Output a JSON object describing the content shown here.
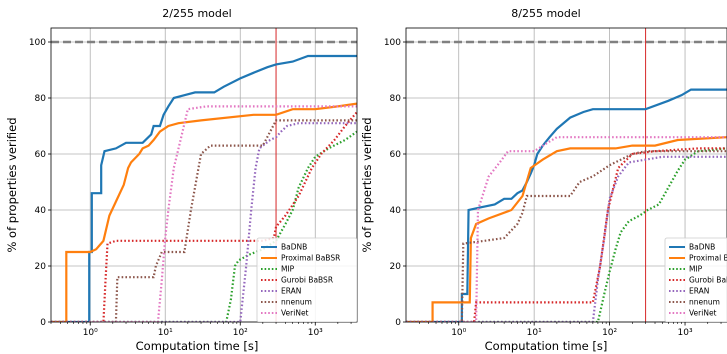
{
  "chart_data": [
    {
      "type": "line",
      "title": "2/255 model",
      "xlabel": "Computation time [s]",
      "ylabel": "% of properties verified",
      "xscale": "log",
      "xlim": [
        0.3,
        3600
      ],
      "ylim": [
        0,
        105
      ],
      "xticks": [
        1,
        10,
        100,
        1000
      ],
      "xticklabels": [
        "10⁰",
        "10¹",
        "10²",
        "10³"
      ],
      "yticks": [
        0,
        20,
        40,
        60,
        80,
        100
      ],
      "reference_hline": 100,
      "reference_vline": 300,
      "grid": true,
      "legend_position": "lower-right",
      "series": [
        {
          "name": "BaDNB",
          "color": "#1f77b4",
          "style": "solid",
          "points": [
            [
              0.3,
              0
            ],
            [
              0.97,
              0
            ],
            [
              0.97,
              25
            ],
            [
              1.05,
              25
            ],
            [
              1.05,
              46
            ],
            [
              1.4,
              46
            ],
            [
              1.4,
              56
            ],
            [
              1.55,
              61
            ],
            [
              2.2,
              62
            ],
            [
              3,
              64
            ],
            [
              5,
              64
            ],
            [
              6.5,
              67
            ],
            [
              7,
              70
            ],
            [
              8.5,
              70
            ],
            [
              9.5,
              74
            ],
            [
              11,
              77
            ],
            [
              13,
              80
            ],
            [
              18,
              81
            ],
            [
              25,
              82
            ],
            [
              45,
              82
            ],
            [
              60,
              84
            ],
            [
              100,
              87
            ],
            [
              150,
              89
            ],
            [
              230,
              91
            ],
            [
              300,
              92
            ],
            [
              500,
              93
            ],
            [
              800,
              95
            ],
            [
              3600,
              95
            ]
          ]
        },
        {
          "name": "Proximal BaBSR",
          "color": "#ff7f0e",
          "style": "solid",
          "points": [
            [
              0.3,
              0
            ],
            [
              0.48,
              0
            ],
            [
              0.48,
              25
            ],
            [
              1,
              25
            ],
            [
              1.2,
              26
            ],
            [
              1.5,
              29
            ],
            [
              1.8,
              38
            ],
            [
              2.2,
              43
            ],
            [
              2.8,
              49
            ],
            [
              3.2,
              55
            ],
            [
              3.5,
              57
            ],
            [
              4.5,
              60
            ],
            [
              5,
              62
            ],
            [
              6,
              63
            ],
            [
              7,
              65
            ],
            [
              8.5,
              68
            ],
            [
              11,
              70
            ],
            [
              15,
              71
            ],
            [
              30,
              72
            ],
            [
              150,
              74
            ],
            [
              300,
              74
            ],
            [
              500,
              76
            ],
            [
              1000,
              76
            ],
            [
              2000,
              77
            ],
            [
              3600,
              78
            ]
          ]
        },
        {
          "name": "MIP",
          "color": "#2ca02c",
          "style": "dotted",
          "points": [
            [
              0.3,
              0
            ],
            [
              65,
              0
            ],
            [
              75,
              8
            ],
            [
              85,
              20
            ],
            [
              95,
              22
            ],
            [
              130,
              24
            ],
            [
              200,
              26
            ],
            [
              300,
              29
            ],
            [
              400,
              35
            ],
            [
              500,
              40
            ],
            [
              600,
              48
            ],
            [
              800,
              55
            ],
            [
              1000,
              59
            ],
            [
              1500,
              62
            ],
            [
              2500,
              65
            ],
            [
              3600,
              68
            ]
          ]
        },
        {
          "name": "Gurobi BaBSR",
          "color": "#d62728",
          "style": "dotted",
          "points": [
            [
              0.3,
              0
            ],
            [
              1.5,
              0
            ],
            [
              1.6,
              15
            ],
            [
              1.7,
              28
            ],
            [
              2.2,
              29
            ],
            [
              130,
              29
            ],
            [
              200,
              29
            ],
            [
              280,
              30
            ],
            [
              300,
              34
            ],
            [
              400,
              38
            ],
            [
              600,
              45
            ],
            [
              900,
              55
            ],
            [
              1200,
              60
            ],
            [
              1800,
              65
            ],
            [
              2500,
              70
            ],
            [
              3600,
              75
            ]
          ]
        },
        {
          "name": "ERAN",
          "color": "#9467bd",
          "style": "dotted",
          "points": [
            [
              0.3,
              0
            ],
            [
              100,
              0
            ],
            [
              120,
              20
            ],
            [
              140,
              40
            ],
            [
              160,
              55
            ],
            [
              180,
              62
            ],
            [
              250,
              65
            ],
            [
              300,
              66
            ],
            [
              350,
              68
            ],
            [
              420,
              70
            ],
            [
              600,
              71
            ],
            [
              3600,
              71
            ]
          ]
        },
        {
          "name": "nnenum",
          "color": "#8c564b",
          "style": "dotted",
          "points": [
            [
              0.3,
              0
            ],
            [
              2.2,
              0
            ],
            [
              2.3,
              16
            ],
            [
              7,
              16
            ],
            [
              7.5,
              20
            ],
            [
              9,
              25
            ],
            [
              18,
              25
            ],
            [
              22,
              40
            ],
            [
              30,
              60
            ],
            [
              40,
              63
            ],
            [
              200,
              63
            ],
            [
              300,
              72
            ],
            [
              3600,
              72
            ]
          ]
        },
        {
          "name": "VeriNet",
          "color": "#e377c2",
          "style": "dotted",
          "points": [
            [
              0.3,
              0
            ],
            [
              8,
              0
            ],
            [
              9,
              15
            ],
            [
              10,
              30
            ],
            [
              11,
              40
            ],
            [
              13,
              55
            ],
            [
              16,
              65
            ],
            [
              20,
              76
            ],
            [
              35,
              77
            ],
            [
              200,
              77
            ],
            [
              3600,
              77
            ]
          ]
        }
      ]
    },
    {
      "type": "line",
      "title": "8/255 model",
      "xlabel": "Computation time [s]",
      "ylabel": "% of properties verified",
      "xscale": "log",
      "xlim": [
        0.2,
        3600
      ],
      "ylim": [
        0,
        105
      ],
      "xticks": [
        1,
        10,
        100,
        1000
      ],
      "xticklabels": [
        "10⁰",
        "10¹",
        "10²",
        "10³"
      ],
      "yticks": [
        0,
        20,
        40,
        60,
        80,
        100
      ],
      "reference_hline": 100,
      "reference_vline": 300,
      "grid": true,
      "legend_position": "lower-right",
      "series": [
        {
          "name": "BaDNB",
          "color": "#1f77b4",
          "style": "solid",
          "points": [
            [
              0.2,
              0
            ],
            [
              1.1,
              0
            ],
            [
              1.1,
              10
            ],
            [
              1.3,
              10
            ],
            [
              1.35,
              40
            ],
            [
              2,
              41
            ],
            [
              3,
              42
            ],
            [
              4,
              44
            ],
            [
              5,
              44
            ],
            [
              6,
              46
            ],
            [
              7,
              47
            ],
            [
              8,
              50
            ],
            [
              9,
              53
            ],
            [
              10,
              56
            ],
            [
              11,
              60
            ],
            [
              13,
              63
            ],
            [
              16,
              66
            ],
            [
              20,
              69
            ],
            [
              30,
              73
            ],
            [
              45,
              75
            ],
            [
              60,
              76
            ],
            [
              300,
              76
            ],
            [
              600,
              79
            ],
            [
              900,
              81
            ],
            [
              1200,
              83
            ],
            [
              3600,
              83
            ]
          ]
        },
        {
          "name": "Proximal BaBSR",
          "color": "#ff7f0e",
          "style": "solid",
          "points": [
            [
              0.2,
              0
            ],
            [
              0.45,
              0
            ],
            [
              0.45,
              7
            ],
            [
              1.4,
              7
            ],
            [
              1.45,
              30
            ],
            [
              1.7,
              35
            ],
            [
              2.5,
              37
            ],
            [
              5,
              40
            ],
            [
              7,
              45
            ],
            [
              9,
              55
            ],
            [
              13,
              58
            ],
            [
              20,
              61
            ],
            [
              30,
              62
            ],
            [
              120,
              62
            ],
            [
              200,
              63
            ],
            [
              400,
              63
            ],
            [
              800,
              65
            ],
            [
              3600,
              66
            ]
          ]
        },
        {
          "name": "MIP",
          "color": "#2ca02c",
          "style": "dotted",
          "points": [
            [
              0.2,
              0
            ],
            [
              70,
              0
            ],
            [
              85,
              10
            ],
            [
              100,
              18
            ],
            [
              120,
              26
            ],
            [
              140,
              32
            ],
            [
              180,
              36
            ],
            [
              250,
              38
            ],
            [
              320,
              40
            ],
            [
              450,
              42
            ],
            [
              600,
              48
            ],
            [
              800,
              54
            ],
            [
              1000,
              58
            ],
            [
              1500,
              61
            ],
            [
              3600,
              62
            ]
          ]
        },
        {
          "name": "Gurobi BaBSR",
          "color": "#d62728",
          "style": "dotted",
          "points": [
            [
              0.2,
              0
            ],
            [
              1.6,
              0
            ],
            [
              1.7,
              7
            ],
            [
              60,
              7
            ],
            [
              75,
              20
            ],
            [
              95,
              40
            ],
            [
              130,
              55
            ],
            [
              200,
              60
            ],
            [
              400,
              61
            ],
            [
              1500,
              62
            ],
            [
              3600,
              62
            ]
          ]
        },
        {
          "name": "ERAN",
          "color": "#9467bd",
          "style": "dotted",
          "points": [
            [
              0.2,
              0
            ],
            [
              60,
              0
            ],
            [
              70,
              15
            ],
            [
              85,
              30
            ],
            [
              100,
              44
            ],
            [
              130,
              52
            ],
            [
              180,
              57
            ],
            [
              300,
              58
            ],
            [
              500,
              59
            ],
            [
              3600,
              59
            ]
          ]
        },
        {
          "name": "nnenum",
          "color": "#8c564b",
          "style": "dotted",
          "points": [
            [
              0.2,
              0
            ],
            [
              1.1,
              0
            ],
            [
              1.15,
              28
            ],
            [
              2.2,
              29
            ],
            [
              4,
              30
            ],
            [
              6,
              35
            ],
            [
              7,
              39
            ],
            [
              8,
              45
            ],
            [
              30,
              45
            ],
            [
              40,
              50
            ],
            [
              60,
              52
            ],
            [
              100,
              56
            ],
            [
              200,
              60
            ],
            [
              300,
              61
            ],
            [
              3600,
              61
            ]
          ]
        },
        {
          "name": "VeriNet",
          "color": "#e377c2",
          "style": "dotted",
          "points": [
            [
              0.2,
              0
            ],
            [
              1.7,
              0
            ],
            [
              1.8,
              40
            ],
            [
              2.5,
              52
            ],
            [
              3.5,
              57
            ],
            [
              4.5,
              61
            ],
            [
              10,
              61
            ],
            [
              15,
              64
            ],
            [
              20,
              66
            ],
            [
              60,
              66
            ],
            [
              3600,
              66
            ]
          ]
        }
      ]
    }
  ]
}
